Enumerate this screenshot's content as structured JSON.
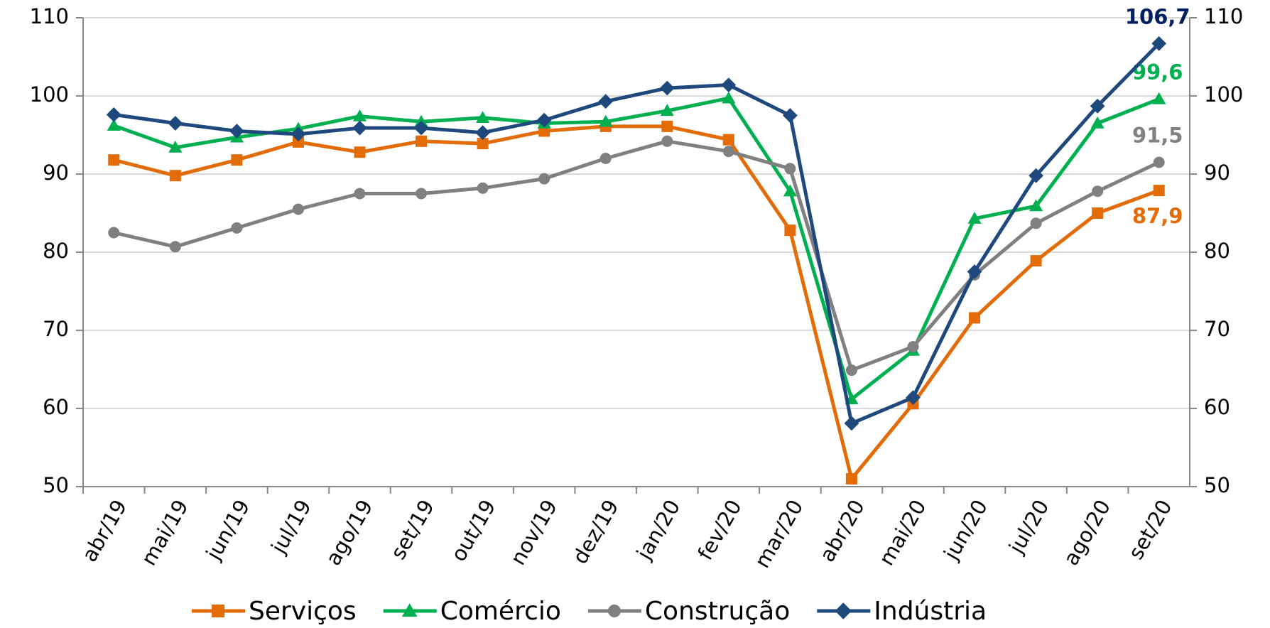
{
  "chart_data": {
    "type": "line",
    "categories": [
      "abr/19",
      "mai/19",
      "jun/19",
      "jul/19",
      "ago/19",
      "set/19",
      "out/19",
      "nov/19",
      "dez/19",
      "jan/20",
      "fev/20",
      "mar/20",
      "abr/20",
      "mai/20",
      "jun/20",
      "jul/20",
      "ago/20",
      "set/20"
    ],
    "series": [
      {
        "name": "Serviços",
        "color": "#e36c09",
        "marker": "square",
        "values": [
          91.8,
          89.8,
          91.8,
          94.1,
          92.8,
          94.2,
          93.9,
          95.5,
          96.1,
          96.1,
          94.4,
          82.8,
          51.0,
          60.6,
          71.6,
          78.9,
          85.0,
          87.9
        ],
        "value_labels": [
          null,
          null,
          null,
          null,
          null,
          null,
          null,
          null,
          null,
          null,
          null,
          null,
          null,
          null,
          null,
          null,
          null,
          "87,9"
        ]
      },
      {
        "name": "Comércio",
        "color": "#00b050",
        "marker": "triangle",
        "values": [
          96.2,
          93.4,
          94.7,
          95.8,
          97.4,
          96.7,
          97.2,
          96.5,
          96.7,
          98.1,
          99.7,
          87.8,
          61.2,
          67.4,
          84.3,
          85.9,
          96.5,
          99.6
        ],
        "value_labels": [
          null,
          null,
          null,
          null,
          null,
          null,
          null,
          null,
          null,
          null,
          null,
          null,
          null,
          null,
          null,
          null,
          null,
          "99,6"
        ]
      },
      {
        "name": "Construção",
        "color": "#808080",
        "marker": "circle",
        "values": [
          82.5,
          80.7,
          83.1,
          85.5,
          87.5,
          87.5,
          88.2,
          89.4,
          92.0,
          94.2,
          92.9,
          90.7,
          64.9,
          67.9,
          77.1,
          83.7,
          87.8,
          91.5
        ],
        "value_labels": [
          null,
          null,
          null,
          null,
          null,
          null,
          null,
          null,
          null,
          null,
          null,
          null,
          null,
          null,
          null,
          null,
          null,
          "91,5"
        ]
      },
      {
        "name": "Indústria",
        "color": "#1f497d",
        "label_color": "#002060",
        "marker": "diamond",
        "values": [
          97.6,
          96.5,
          95.5,
          95.1,
          95.9,
          95.9,
          95.3,
          96.9,
          99.3,
          101.0,
          101.4,
          97.5,
          58.1,
          61.4,
          77.5,
          89.8,
          98.7,
          106.7
        ],
        "value_labels": [
          null,
          null,
          null,
          null,
          null,
          null,
          null,
          null,
          null,
          null,
          null,
          null,
          null,
          null,
          null,
          null,
          null,
          "106,7"
        ]
      }
    ],
    "ylim": [
      50,
      110
    ],
    "yticks": [
      50,
      60,
      70,
      80,
      90,
      100,
      110
    ],
    "y2lim": [
      50,
      110
    ],
    "y2ticks": [
      50,
      60,
      70,
      80,
      90,
      100,
      110
    ],
    "grid": true,
    "legend": "bottom"
  }
}
